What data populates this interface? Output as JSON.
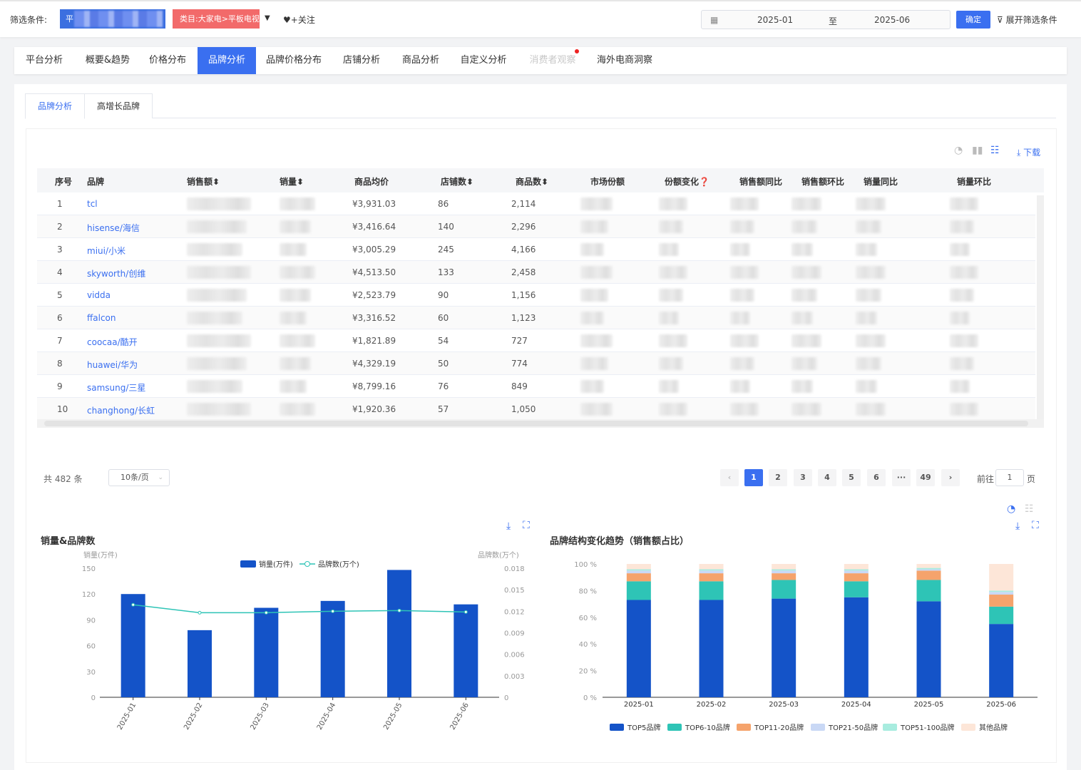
{
  "filter": {
    "label": "筛选条件:",
    "platform_prefix": "平",
    "category": "类目:大家电>平板电视",
    "follow": "♥+关注",
    "date_start": "2025-01",
    "date_sep": "至",
    "date_end": "2025-06",
    "ok": "确定",
    "expand": "展开筛选条件"
  },
  "tabs": [
    "平台分析",
    "概要&趋势",
    "价格分布",
    "品牌分析",
    "品牌价格分布",
    "店铺分析",
    "商品分析",
    "自定义分析",
    "消费者观察",
    "海外电商洞察"
  ],
  "subtabs": [
    "品牌分析",
    "高增长品牌"
  ],
  "download": "下载",
  "table": {
    "headers": [
      "序号",
      "品牌",
      "销售额",
      "销量",
      "商品均价",
      "店铺数",
      "商品数",
      "市场份额",
      "份额变化",
      "销售额同比",
      "销售额环比",
      "销量同比",
      "销量环比"
    ],
    "rows": [
      {
        "no": "1",
        "brand": "tcl",
        "avg": "¥3,931.03",
        "shops": "86",
        "items": "2,114"
      },
      {
        "no": "2",
        "brand": "hisense/海信",
        "avg": "¥3,416.64",
        "shops": "140",
        "items": "2,296"
      },
      {
        "no": "3",
        "brand": "miui/小米",
        "avg": "¥3,005.29",
        "shops": "245",
        "items": "4,166"
      },
      {
        "no": "4",
        "brand": "skyworth/创维",
        "avg": "¥4,513.50",
        "shops": "133",
        "items": "2,458"
      },
      {
        "no": "5",
        "brand": "vidda",
        "avg": "¥2,523.79",
        "shops": "90",
        "items": "1,156"
      },
      {
        "no": "6",
        "brand": "ffalcon",
        "avg": "¥3,316.52",
        "shops": "60",
        "items": "1,123"
      },
      {
        "no": "7",
        "brand": "coocaa/酷开",
        "avg": "¥1,821.89",
        "shops": "54",
        "items": "727"
      },
      {
        "no": "8",
        "brand": "huawei/华为",
        "avg": "¥4,329.19",
        "shops": "50",
        "items": "774"
      },
      {
        "no": "9",
        "brand": "samsung/三星",
        "avg": "¥8,799.16",
        "shops": "76",
        "items": "849"
      },
      {
        "no": "10",
        "brand": "changhong/长虹",
        "avg": "¥1,920.36",
        "shops": "57",
        "items": "1,050"
      }
    ]
  },
  "pagination": {
    "total": "共 482 条",
    "page_size": "10条/页",
    "pages": [
      "1",
      "2",
      "3",
      "4",
      "5",
      "6",
      "···",
      "49"
    ],
    "goto": "前往",
    "goto_value": "1",
    "goto_suffix": "页"
  },
  "chart_data": [
    {
      "type": "bar",
      "title": "销量&品牌数",
      "categories": [
        "2025-01",
        "2025-02",
        "2025-03",
        "2025-04",
        "2025-05",
        "2025-06"
      ],
      "series": [
        {
          "name": "销量(万件)",
          "type": "bar",
          "axis": "left",
          "values": [
            120,
            78,
            104,
            112,
            148,
            108
          ]
        },
        {
          "name": "品牌数(万个)",
          "type": "line",
          "axis": "right",
          "values": [
            0.0129,
            0.0118,
            0.0118,
            0.012,
            0.0121,
            0.0119
          ]
        }
      ],
      "ylabel": "销量(万件)",
      "y2label": "品牌数(万个)",
      "ylim": [
        0,
        150
      ],
      "yticks": [
        0,
        30,
        60,
        90,
        120,
        150
      ],
      "y2lim": [
        0,
        0.018
      ],
      "y2ticks": [
        "0",
        "0.003",
        "0.006",
        "0.009",
        "0.012",
        "0.015",
        "0.018"
      ],
      "legend": "top",
      "colors": {
        "bar": "#1453c8",
        "line": "#2ec4b6"
      }
    },
    {
      "type": "bar",
      "stacked": true,
      "title": "品牌结构变化趋势（销售额占比）",
      "categories": [
        "2025-01",
        "2025-02",
        "2025-03",
        "2025-04",
        "2025-05",
        "2025-06"
      ],
      "yticks": [
        "0 %",
        "20 %",
        "40 %",
        "60 %",
        "80 %",
        "100 %"
      ],
      "ylim": [
        0,
        100
      ],
      "legend": "bottom",
      "series": [
        {
          "name": "TOP5品牌",
          "color": "#1453c8",
          "values": [
            73,
            73,
            74,
            75,
            72,
            55
          ]
        },
        {
          "name": "TOP6-10品牌",
          "color": "#2ec4b6",
          "values": [
            14,
            14,
            14,
            12,
            16,
            13
          ]
        },
        {
          "name": "TOP11-20品牌",
          "color": "#f5a36c",
          "values": [
            6,
            6,
            5,
            6,
            7,
            9
          ]
        },
        {
          "name": "TOP21-50品牌",
          "color": "#c9d8f5",
          "values": [
            2,
            2,
            2,
            2,
            1,
            2
          ]
        },
        {
          "name": "TOP51-100品牌",
          "color": "#a8ecdf",
          "values": [
            1,
            1,
            1,
            1,
            1,
            1
          ]
        },
        {
          "name": "其他品牌",
          "color": "#fde6d8",
          "values": [
            4,
            4,
            4,
            4,
            3,
            20
          ]
        }
      ]
    }
  ]
}
